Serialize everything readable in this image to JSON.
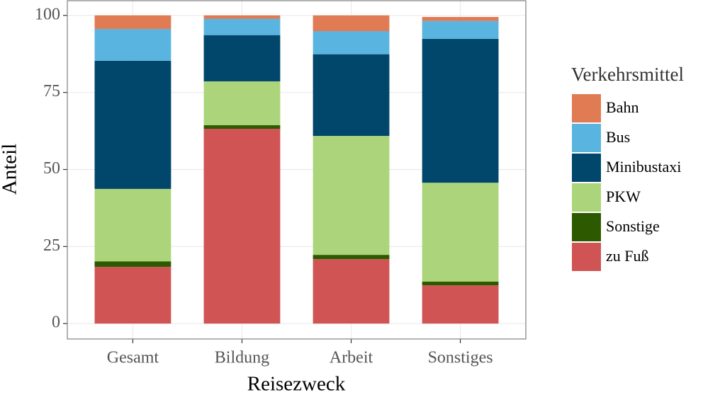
{
  "chart_data": {
    "type": "stacked_bar",
    "x_label": "Reisezweck",
    "y_label": "Anteil",
    "legend_title": "Verkehrsmittel",
    "categories": [
      "Gesamt",
      "Bildung",
      "Arbeit",
      "Sonstiges"
    ],
    "series": [
      {
        "name": "Bahn",
        "color": "#e07b54",
        "values": [
          4.4,
          1.1,
          5.1,
          1.3
        ]
      },
      {
        "name": "Bus",
        "color": "#5ab4e0",
        "values": [
          10.3,
          5.3,
          7.5,
          5.8
        ]
      },
      {
        "name": "Minibustaxi",
        "color": "#00476b",
        "values": [
          41.6,
          15.0,
          26.5,
          46.7
        ]
      },
      {
        "name": "PKW",
        "color": "#acd47a",
        "values": [
          23.5,
          14.2,
          38.6,
          32.1
        ]
      },
      {
        "name": "Sonstige",
        "color": "#2d5a00",
        "values": [
          1.8,
          1.2,
          1.4,
          1.2
        ]
      },
      {
        "name": "zu Fuß",
        "color": "#d05454",
        "values": [
          18.4,
          63.2,
          20.9,
          12.4
        ]
      }
    ],
    "ylim": [
      -5,
      105
    ],
    "yticks": [
      0,
      25,
      50,
      75,
      100
    ],
    "grid": true,
    "legend_position": "right"
  }
}
